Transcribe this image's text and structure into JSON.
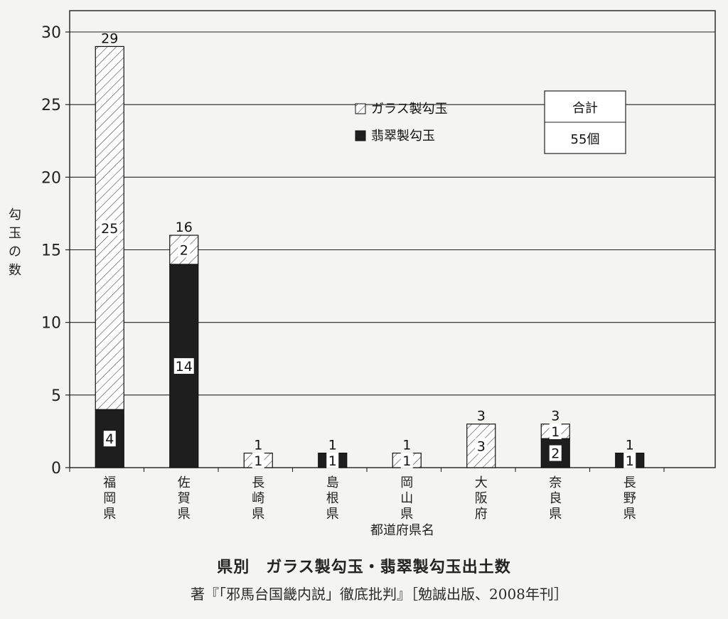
{
  "chart_data": {
    "type": "bar",
    "stacked": true,
    "categories": [
      "福岡県",
      "佐賀県",
      "長崎県",
      "島根県",
      "岡山県",
      "大阪府",
      "奈良県",
      "長野県"
    ],
    "series": [
      {
        "name": "翡翠製勾玉",
        "values": [
          4,
          14,
          0,
          1,
          0,
          0,
          2,
          1
        ],
        "pattern": "solid",
        "color": "#1e1e1e"
      },
      {
        "name": "ガラス製勾玉",
        "values": [
          25,
          2,
          1,
          0,
          1,
          3,
          1,
          0
        ],
        "pattern": "hatched",
        "color": "#ffffff"
      }
    ],
    "totals": [
      29,
      16,
      1,
      1,
      1,
      3,
      3,
      1
    ],
    "xlabel": "都道府県名",
    "ylabel": "勾玉の数",
    "ylim": [
      0,
      30
    ],
    "yticks": [
      0,
      5,
      10,
      15,
      20,
      25,
      30
    ],
    "grid": true,
    "legend_position": "top-center",
    "summary_box": {
      "header": "合計",
      "value": "55個"
    }
  },
  "caption": {
    "title": "県別　ガラス製勾玉・翡翠製勾玉出土数",
    "citation": "著『「邪馬台国畿内説」徹底批判』［勉誠出版、2008年刊］"
  }
}
